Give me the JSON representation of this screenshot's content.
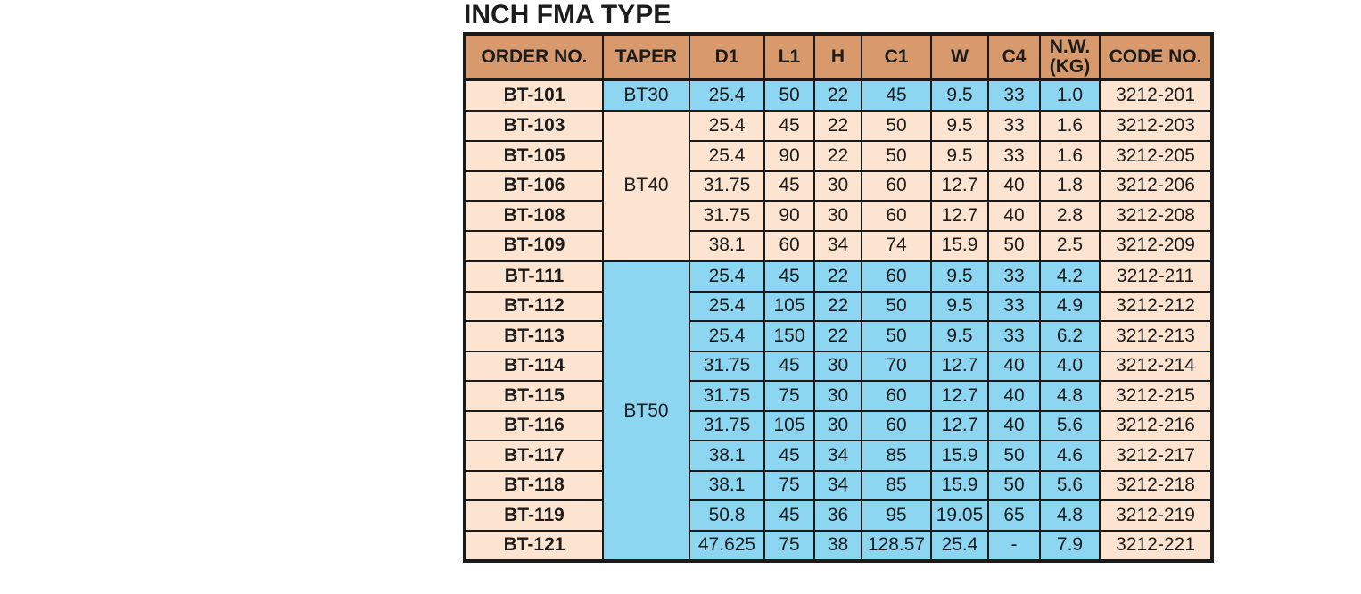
{
  "page": {
    "title": "INCH FMA TYPE"
  },
  "colors": {
    "page_bg": "#FFFFFF",
    "header_bg": "#D89A6C",
    "peach": "#FCE4D0",
    "blue": "#8DD6F2",
    "border": "#1A1A1A",
    "text": "#1C1C1C"
  },
  "table": {
    "headers": [
      "ORDER NO.",
      "TAPER",
      "D1",
      "L1",
      "H",
      "C1",
      "W",
      "C4",
      "N.W.\n(KG)",
      "CODE NO."
    ],
    "groups": [
      {
        "taper": "BT30",
        "tone": "blue",
        "rows": [
          {
            "order": "BT-101",
            "d1": "25.4",
            "l1": "50",
            "h": "22",
            "c1": "45",
            "w": "9.5",
            "c4": "33",
            "nw": "1.0",
            "code": "3212-201"
          }
        ]
      },
      {
        "taper": "BT40",
        "tone": "peach",
        "rows": [
          {
            "order": "BT-103",
            "d1": "25.4",
            "l1": "45",
            "h": "22",
            "c1": "50",
            "w": "9.5",
            "c4": "33",
            "nw": "1.6",
            "code": "3212-203"
          },
          {
            "order": "BT-105",
            "d1": "25.4",
            "l1": "90",
            "h": "22",
            "c1": "50",
            "w": "9.5",
            "c4": "33",
            "nw": "1.6",
            "code": "3212-205"
          },
          {
            "order": "BT-106",
            "d1": "31.75",
            "l1": "45",
            "h": "30",
            "c1": "60",
            "w": "12.7",
            "c4": "40",
            "nw": "1.8",
            "code": "3212-206"
          },
          {
            "order": "BT-108",
            "d1": "31.75",
            "l1": "90",
            "h": "30",
            "c1": "60",
            "w": "12.7",
            "c4": "40",
            "nw": "2.8",
            "code": "3212-208"
          },
          {
            "order": "BT-109",
            "d1": "38.1",
            "l1": "60",
            "h": "34",
            "c1": "74",
            "w": "15.9",
            "c4": "50",
            "nw": "2.5",
            "code": "3212-209"
          }
        ]
      },
      {
        "taper": "BT50",
        "tone": "blue",
        "rows": [
          {
            "order": "BT-111",
            "d1": "25.4",
            "l1": "45",
            "h": "22",
            "c1": "60",
            "w": "9.5",
            "c4": "33",
            "nw": "4.2",
            "code": "3212-211"
          },
          {
            "order": "BT-112",
            "d1": "25.4",
            "l1": "105",
            "h": "22",
            "c1": "50",
            "w": "9.5",
            "c4": "33",
            "nw": "4.9",
            "code": "3212-212"
          },
          {
            "order": "BT-113",
            "d1": "25.4",
            "l1": "150",
            "h": "22",
            "c1": "50",
            "w": "9.5",
            "c4": "33",
            "nw": "6.2",
            "code": "3212-213"
          },
          {
            "order": "BT-114",
            "d1": "31.75",
            "l1": "45",
            "h": "30",
            "c1": "70",
            "w": "12.7",
            "c4": "40",
            "nw": "4.0",
            "code": "3212-214"
          },
          {
            "order": "BT-115",
            "d1": "31.75",
            "l1": "75",
            "h": "30",
            "c1": "60",
            "w": "12.7",
            "c4": "40",
            "nw": "4.8",
            "code": "3212-215"
          },
          {
            "order": "BT-116",
            "d1": "31.75",
            "l1": "105",
            "h": "30",
            "c1": "60",
            "w": "12.7",
            "c4": "40",
            "nw": "5.6",
            "code": "3212-216"
          },
          {
            "order": "BT-117",
            "d1": "38.1",
            "l1": "45",
            "h": "34",
            "c1": "85",
            "w": "15.9",
            "c4": "50",
            "nw": "4.6",
            "code": "3212-217"
          },
          {
            "order": "BT-118",
            "d1": "38.1",
            "l1": "75",
            "h": "34",
            "c1": "85",
            "w": "15.9",
            "c4": "50",
            "nw": "5.6",
            "code": "3212-218"
          },
          {
            "order": "BT-119",
            "d1": "50.8",
            "l1": "45",
            "h": "36",
            "c1": "95",
            "w": "19.05",
            "c4": "65",
            "nw": "4.8",
            "code": "3212-219"
          },
          {
            "order": "BT-121",
            "d1": "47.625",
            "l1": "75",
            "h": "38",
            "c1": "128.57",
            "w": "25.4",
            "c4": "-",
            "nw": "7.9",
            "code": "3212-221"
          }
        ]
      }
    ]
  }
}
